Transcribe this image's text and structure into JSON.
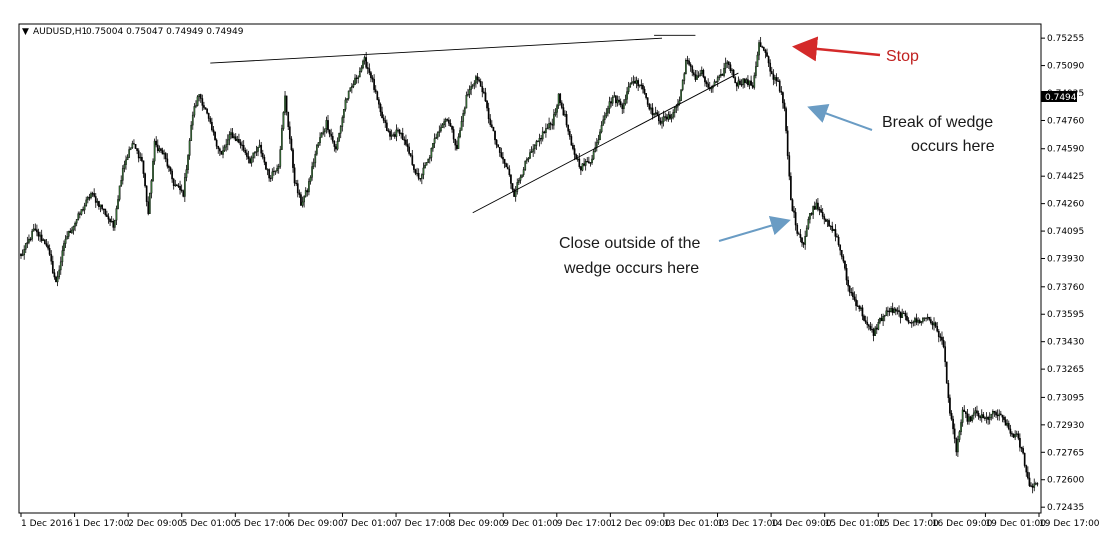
{
  "header": {
    "symbol": "AUDUSD,H1",
    "ohlc": "0.75004 0.75047 0.74949 0.74949"
  },
  "chart_data": {
    "type": "candlestick",
    "symbol": "AUDUSD",
    "timeframe": "H1",
    "current_price": "0.74949",
    "y_ticks": [
      "0.75255",
      "0.75090",
      "0.74925",
      "0.74760",
      "0.74590",
      "0.74425",
      "0.74260",
      "0.74095",
      "0.73930",
      "0.73760",
      "0.73595",
      "0.73430",
      "0.73265",
      "0.73095",
      "0.72930",
      "0.72765",
      "0.72600",
      "0.72435"
    ],
    "y_range": [
      0.724,
      0.7534
    ],
    "x_ticks": [
      "1 Dec 2016",
      "1 Dec 17:00",
      "2 Dec 09:00",
      "5 Dec 01:00",
      "5 Dec 17:00",
      "6 Dec 09:00",
      "7 Dec 01:00",
      "7 Dec 17:00",
      "8 Dec 09:00",
      "9 Dec 01:00",
      "9 Dec 17:00",
      "12 Dec 09:00",
      "13 Dec 01:00",
      "13 Dec 17:00",
      "14 Dec 09:00",
      "15 Dec 01:00",
      "15 Dec 17:00",
      "16 Dec 09:00",
      "19 Dec 01:00",
      "19 Dec 17:00"
    ],
    "bull_color": "#3c7a3c",
    "bear_color": "#000000",
    "price_path": [
      [
        0,
        0.7394
      ],
      [
        8,
        0.741
      ],
      [
        16,
        0.7402
      ],
      [
        22,
        0.7378
      ],
      [
        28,
        0.7405
      ],
      [
        36,
        0.7418
      ],
      [
        44,
        0.7432
      ],
      [
        52,
        0.7422
      ],
      [
        58,
        0.7412
      ],
      [
        64,
        0.7448
      ],
      [
        70,
        0.7462
      ],
      [
        76,
        0.7452
      ],
      [
        80,
        0.742
      ],
      [
        84,
        0.7462
      ],
      [
        90,
        0.7455
      ],
      [
        96,
        0.7438
      ],
      [
        102,
        0.7432
      ],
      [
        108,
        0.748
      ],
      [
        112,
        0.7492
      ],
      [
        116,
        0.7482
      ],
      [
        120,
        0.747
      ],
      [
        126,
        0.7455
      ],
      [
        132,
        0.7468
      ],
      [
        138,
        0.7462
      ],
      [
        144,
        0.7452
      ],
      [
        150,
        0.746
      ],
      [
        156,
        0.7442
      ],
      [
        162,
        0.745
      ],
      [
        166,
        0.749
      ],
      [
        172,
        0.744
      ],
      [
        176,
        0.7426
      ],
      [
        180,
        0.7434
      ],
      [
        186,
        0.746
      ],
      [
        192,
        0.7475
      ],
      [
        198,
        0.7458
      ],
      [
        204,
        0.7488
      ],
      [
        210,
        0.75
      ],
      [
        216,
        0.7512
      ],
      [
        220,
        0.7503
      ],
      [
        226,
        0.748
      ],
      [
        232,
        0.7466
      ],
      [
        238,
        0.747
      ],
      [
        244,
        0.7456
      ],
      [
        250,
        0.744
      ],
      [
        256,
        0.7452
      ],
      [
        262,
        0.747
      ],
      [
        268,
        0.7478
      ],
      [
        274,
        0.746
      ],
      [
        280,
        0.749
      ],
      [
        286,
        0.7502
      ],
      [
        290,
        0.7495
      ],
      [
        294,
        0.7478
      ],
      [
        300,
        0.7458
      ],
      [
        306,
        0.7446
      ],
      [
        310,
        0.7432
      ],
      [
        316,
        0.7448
      ],
      [
        322,
        0.7458
      ],
      [
        328,
        0.7468
      ],
      [
        334,
        0.7475
      ],
      [
        338,
        0.749
      ],
      [
        342,
        0.7478
      ],
      [
        346,
        0.746
      ],
      [
        352,
        0.7448
      ],
      [
        358,
        0.7452
      ],
      [
        362,
        0.7462
      ],
      [
        366,
        0.7478
      ],
      [
        372,
        0.749
      ],
      [
        378,
        0.7485
      ],
      [
        384,
        0.75
      ],
      [
        390,
        0.7498
      ],
      [
        396,
        0.7482
      ],
      [
        402,
        0.7476
      ],
      [
        408,
        0.7478
      ],
      [
        414,
        0.7488
      ],
      [
        418,
        0.7512
      ],
      [
        424,
        0.7502
      ],
      [
        428,
        0.7505
      ],
      [
        432,
        0.7494
      ],
      [
        436,
        0.7498
      ],
      [
        440,
        0.7502
      ],
      [
        444,
        0.7512
      ],
      [
        450,
        0.7498
      ],
      [
        454,
        0.75
      ],
      [
        460,
        0.7497
      ],
      [
        464,
        0.7522
      ],
      [
        468,
        0.7516
      ],
      [
        472,
        0.7503
      ],
      [
        476,
        0.75
      ],
      [
        480,
        0.7482
      ],
      [
        484,
        0.7428
      ],
      [
        488,
        0.741
      ],
      [
        492,
        0.7402
      ],
      [
        496,
        0.742
      ],
      [
        500,
        0.7426
      ],
      [
        504,
        0.742
      ],
      [
        508,
        0.7412
      ],
      [
        512,
        0.7408
      ],
      [
        516,
        0.7395
      ],
      [
        520,
        0.7376
      ],
      [
        524,
        0.7368
      ],
      [
        528,
        0.7362
      ],
      [
        532,
        0.7352
      ],
      [
        536,
        0.7348
      ],
      [
        540,
        0.7356
      ],
      [
        546,
        0.7362
      ],
      [
        552,
        0.736
      ],
      [
        558,
        0.7356
      ],
      [
        564,
        0.7355
      ],
      [
        570,
        0.7358
      ],
      [
        576,
        0.735
      ],
      [
        580,
        0.734
      ],
      [
        584,
        0.73
      ],
      [
        588,
        0.7278
      ],
      [
        592,
        0.73
      ],
      [
        596,
        0.7296
      ],
      [
        600,
        0.73
      ],
      [
        606,
        0.7296
      ],
      [
        612,
        0.73
      ],
      [
        618,
        0.7296
      ],
      [
        622,
        0.7288
      ],
      [
        626,
        0.7286
      ],
      [
        630,
        0.7275
      ],
      [
        634,
        0.7256
      ],
      [
        638,
        0.7258
      ]
    ],
    "trendlines": [
      {
        "name": "upper",
        "from": [
          119,
          0.75105
        ],
        "to": [
          403,
          0.75255
        ]
      },
      {
        "name": "lower",
        "from": [
          284,
          0.74205
        ],
        "to": [
          451,
          0.75045
        ]
      },
      {
        "name": "stop-level",
        "from": [
          398,
          0.75272
        ],
        "to": [
          424,
          0.75272
        ]
      }
    ],
    "annotations": [
      {
        "text": "Stop",
        "color": "#c0201f"
      },
      {
        "text": "Break of wedge",
        "text2": "occurs here",
        "color": "#1a1a1a"
      },
      {
        "text": "Close outside of the",
        "text2": "wedge occurs here",
        "color": "#1a1a1a"
      }
    ]
  }
}
